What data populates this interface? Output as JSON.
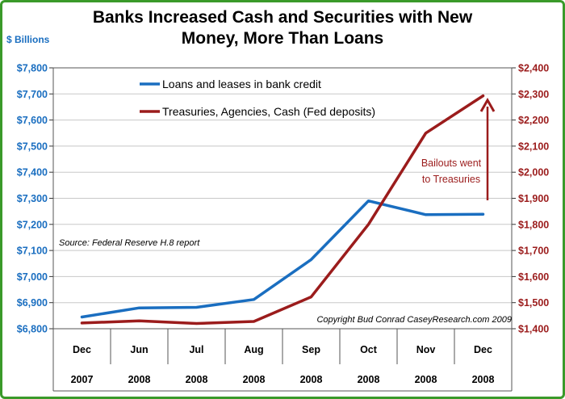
{
  "chart_data": {
    "type": "line",
    "title_lines": [
      "Banks Increased Cash and Securities with New",
      "Money, More Than Loans"
    ],
    "left_unit_label": "$ Billions",
    "categories": [
      {
        "month": "Dec",
        "year": "2007"
      },
      {
        "month": "Jun",
        "year": "2008"
      },
      {
        "month": "Jul",
        "year": "2008"
      },
      {
        "month": "Aug",
        "year": "2008"
      },
      {
        "month": "Sep",
        "year": "2008"
      },
      {
        "month": "Oct",
        "year": "2008"
      },
      {
        "month": "Nov",
        "year": "2008"
      },
      {
        "month": "Dec",
        "year": "2008"
      }
    ],
    "left_axis": {
      "min": 6800,
      "max": 7800,
      "step": 100,
      "tick_labels": [
        "$6,800",
        "$6,900",
        "$7,000",
        "$7,100",
        "$7,200",
        "$7,300",
        "$7,400",
        "$7,500",
        "$7,600",
        "$7,700",
        "$7,800"
      ]
    },
    "right_axis": {
      "min": 1400,
      "max": 2400,
      "step": 100,
      "tick_labels": [
        "$1,400",
        "$1,500",
        "$1,600",
        "$1,700",
        "$1,800",
        "$1,900",
        "$2,000",
        "$2,100",
        "$2,200",
        "$2,300",
        "$2,400"
      ]
    },
    "series": [
      {
        "name": "Loans and leases in bank credit",
        "axis": "left",
        "color": "#1a6ec0",
        "values": [
          6845,
          6880,
          6882,
          6912,
          7065,
          7290,
          7237,
          7239
        ]
      },
      {
        "name": "Treasuries, Agencies, Cash (Fed deposits)",
        "axis": "right",
        "color": "#9b1c1c",
        "values": [
          1422,
          1430,
          1420,
          1428,
          1522,
          1800,
          2150,
          2293
        ]
      }
    ],
    "legend_position": "top-left",
    "grid": true,
    "annotation": {
      "lines": [
        "Bailouts went",
        "to Treasuries"
      ],
      "color": "#9b1c1c"
    },
    "source_note": "Source: Federal Reserve H.8 report",
    "copyright": "Copyright Bud Conrad CaseyResearch.com  2009",
    "colors": {
      "left_axis": "#1a6ec0",
      "right_axis": "#9b1c1c",
      "frame": "#3a9a2a",
      "grid": "#c8c8c8"
    }
  }
}
